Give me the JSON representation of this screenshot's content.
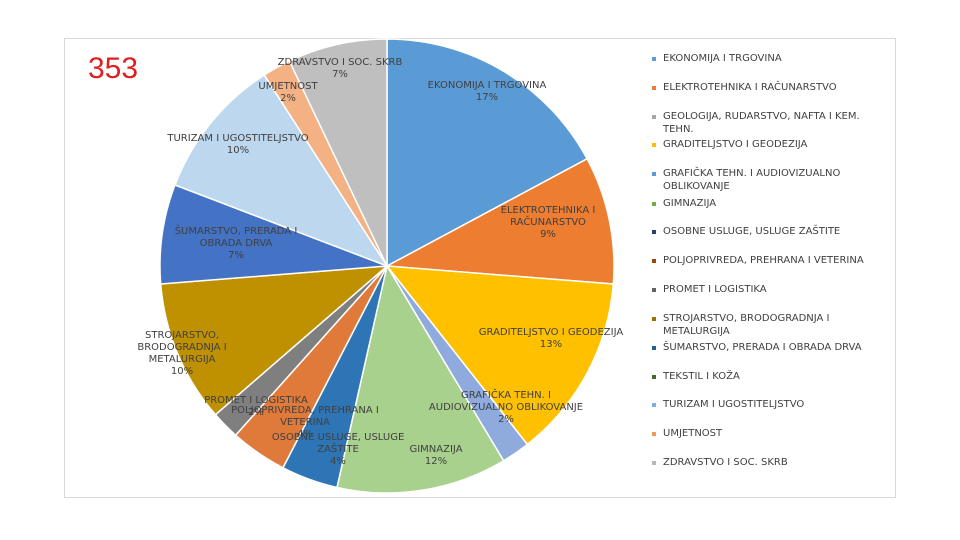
{
  "slide": {
    "number": "353"
  },
  "chart_data": {
    "type": "pie",
    "title": "",
    "slices": [
      {
        "name": "EKONOMIJA I TRGOVINA",
        "value": 17,
        "label": [
          "EKONOMIJA I TRGOVINA",
          "17%"
        ],
        "color": "#5b9bd5"
      },
      {
        "name": "ELEKTROTEHNIKA I RAČUNARSTVO",
        "value": 9,
        "label": [
          "ELEKTROTEHNIKA I",
          "RAČUNARSTVO",
          "9%"
        ],
        "color": "#ed7d31"
      },
      {
        "name": "GRADITELJSTVO I GEODEZIJA",
        "value": 13,
        "label": [
          "GRADITELJSTVO I GEODEZIJA",
          "13%"
        ],
        "color": "#ffc000"
      },
      {
        "name": "GRAFIČKA TEHN. I AUDIOVIZUALNO OBLIKOVANJE",
        "value": 2,
        "label": [
          "GRAFIČKA TEHN. I",
          "AUDIOVIZUALNO OBLIKOVANJE",
          "2%"
        ],
        "color": "#8faadc"
      },
      {
        "name": "GIMNAZIJA",
        "value": 12,
        "label": [
          "GIMNAZIJA",
          "12%"
        ],
        "color": "#a9d18e"
      },
      {
        "name": "OSOBNE USLUGE, USLUGE ZAŠTITE",
        "value": 4,
        "label": [
          "OSOBNE USLUGE, USLUGE",
          "ZAŠTITE",
          "4%"
        ],
        "color": "#2e75b6"
      },
      {
        "name": "POLJOPRIVREDA, PREHRANA I VETERINA",
        "value": 4,
        "label": [
          "POLJOPRIVREDA, PREHRANA I",
          "VETERINA",
          "4%"
        ],
        "color": "#e07a3a"
      },
      {
        "name": "PROMET I LOGISTIKA",
        "value": 2,
        "label": [
          "PROMET I LOGISTIKA",
          "2%"
        ],
        "color": "#7f7f7f"
      },
      {
        "name": "STROJARSTVO, BRODOGRADNJA I METALURGIJA",
        "value": 10,
        "label": [
          "STROJARSTVO,",
          "BRODOGRADNJA I",
          "METALURGIJA",
          "10%"
        ],
        "color": "#bf9000"
      },
      {
        "name": "ŠUMARSTVO, PRERADA I OBRADA DRVA",
        "value": 7,
        "label": [
          "ŠUMARSTVO, PRERADA I",
          "OBRADA DRVA",
          "7%"
        ],
        "color": "#4472c4"
      },
      {
        "name": "TURIZAM I UGOSTITELJSTVO",
        "value": 10,
        "label": [
          "TURIZAM I UGOSTITELJSTVO",
          "10%"
        ],
        "color": "#bdd7ee"
      },
      {
        "name": "UMJETNOST",
        "value": 2,
        "label": [
          "UMJETNOST",
          "2%"
        ],
        "color": "#f4b183"
      },
      {
        "name": "ZDRAVSTVO I SOC. SKRB",
        "value": 7,
        "label": [
          "ZDRAVSTVO I SOC. SKRB",
          "7%"
        ],
        "color": "#bfbfbf"
      }
    ],
    "legend": {
      "position": "right",
      "entries": [
        {
          "lines": [
            "EKONOMIJA I TRGOVINA"
          ],
          "color": "#5b9bd5"
        },
        {
          "lines": [
            "ELEKTROTEHNIKA I RAČUNARSTVO"
          ],
          "color": "#ed7d31"
        },
        {
          "lines": [
            "GEOLOGIJA, RUDARSTVO, NAFTA I KEM.",
            "TEHN."
          ],
          "color": "#a5a5a5"
        },
        {
          "lines": [
            "GRADITELJSTVO I GEODEZIJA"
          ],
          "color": "#ffc000"
        },
        {
          "lines": [
            "GRAFIČKA TEHN. I AUDIOVIZUALNO",
            "OBLIKOVANJE"
          ],
          "color": "#5b9bd5"
        },
        {
          "lines": [
            "GIMNAZIJA"
          ],
          "color": "#70ad47"
        },
        {
          "lines": [
            "OSOBNE USLUGE, USLUGE ZAŠTITE"
          ],
          "color": "#264478"
        },
        {
          "lines": [
            "POLJOPRIVREDA, PREHRANA I VETERINA"
          ],
          "color": "#9e480e"
        },
        {
          "lines": [
            "PROMET I LOGISTIKA"
          ],
          "color": "#636363"
        },
        {
          "lines": [
            "STROJARSTVO, BRODOGRADNJA I",
            "METALURGIJA"
          ],
          "color": "#997300"
        },
        {
          "lines": [
            "ŠUMARSTVO, PRERADA I OBRADA DRVA"
          ],
          "color": "#255e91"
        },
        {
          "lines": [
            "TEKSTIL I KOŽA"
          ],
          "color": "#43682b"
        },
        {
          "lines": [
            "TURIZAM I UGOSTITELJSTVO"
          ],
          "color": "#7cafdd"
        },
        {
          "lines": [
            "UMJETNOST"
          ],
          "color": "#f1975a"
        },
        {
          "lines": [
            "ZDRAVSTVO I SOC. SKRB"
          ],
          "color": "#b7b7b7"
        }
      ]
    }
  }
}
